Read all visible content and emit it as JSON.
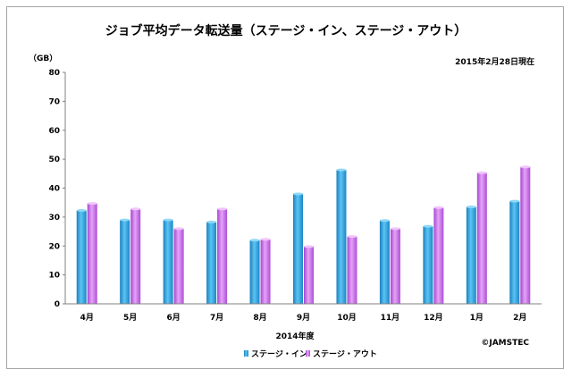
{
  "chart_data": {
    "type": "bar",
    "title": "ジョブ平均データ転送量（ステージ・イン、ステージ・アウト）",
    "date_note": "2015年2月28日現在",
    "ylabel": "（GB）",
    "xlabel": "2014年度",
    "credit": "©JAMSTEC",
    "ylim": [
      0,
      80
    ],
    "yticks": [
      0,
      10,
      20,
      30,
      40,
      50,
      60,
      70,
      80
    ],
    "categories": [
      "4月",
      "5月",
      "6月",
      "7月",
      "8月",
      "9月",
      "10月",
      "11月",
      "12月",
      "1月",
      "2月"
    ],
    "series": [
      {
        "name": "ステージ・イン",
        "color": "#29a3e0",
        "values": [
          32.3,
          29.0,
          29.0,
          28.3,
          22.0,
          38.0,
          46.3,
          28.8,
          26.8,
          33.5,
          35.5
        ]
      },
      {
        "name": "ステージ・アウト",
        "color": "#cc66ee",
        "values": [
          34.7,
          32.8,
          26.0,
          32.8,
          22.3,
          19.8,
          23.3,
          26.0,
          33.3,
          45.3,
          47.3
        ]
      }
    ],
    "legend_position": "bottom-left",
    "grid": false
  }
}
